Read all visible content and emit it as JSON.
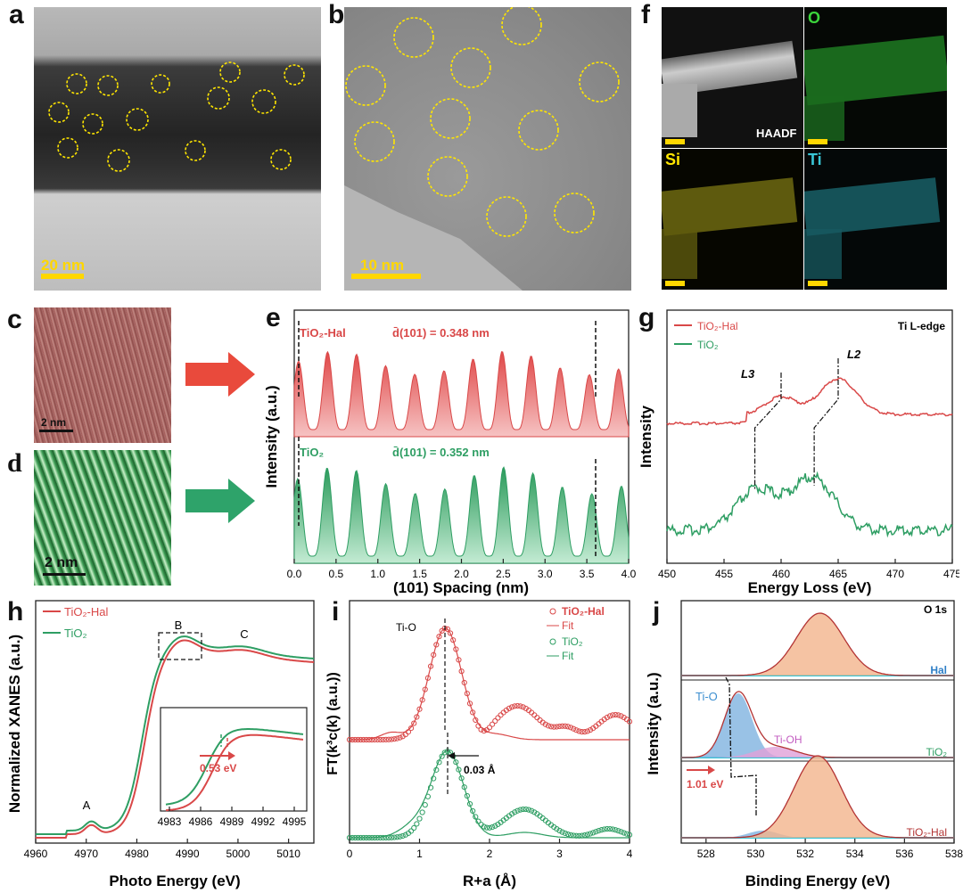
{
  "panels": {
    "a": {
      "label": "a",
      "scalebar": "20 nm"
    },
    "b": {
      "label": "b",
      "scalebar": "10 nm"
    },
    "c": {
      "label": "c",
      "scalebar": "2 nm"
    },
    "d": {
      "label": "d",
      "scalebar": "2 nm"
    },
    "e": {
      "label": "e"
    },
    "f": {
      "label": "f",
      "maps": [
        "HAADF",
        "O",
        "Si",
        "Ti"
      ]
    },
    "g": {
      "label": "g"
    },
    "h": {
      "label": "h"
    },
    "i": {
      "label": "i"
    },
    "j": {
      "label": "j"
    }
  },
  "colors": {
    "red": "#d94848",
    "green": "#2e9e63",
    "dark_red": "#b33333",
    "blue_fill": "#7fb3e0",
    "orange_fill": "#f2b48c",
    "pink_fill": "#e0a0d8",
    "cyan": "#39c6d6"
  },
  "chart_data": [
    {
      "id": "e",
      "type": "area",
      "xlabel": "(101) Spacing (nm)",
      "ylabel": "Intensity (a.u.)",
      "xlim": [
        0.0,
        4.0
      ],
      "xticks": [
        "0.0",
        "0.5",
        "1.0",
        "1.5",
        "2.0",
        "2.5",
        "3.0",
        "3.5",
        "4.0"
      ],
      "series": [
        {
          "name": "TiO2-Hal",
          "annotation": "d(101) = 0.348 nm",
          "period_nm": 0.348,
          "peaks": 11
        },
        {
          "name": "TiO2",
          "annotation": "d(101) = 0.352 nm",
          "period_nm": 0.352,
          "peaks": 11
        }
      ],
      "series_labels": [
        "TiO₂-Hal",
        "TiO₂"
      ],
      "annotations": [
        "d̄(101) = 0.348 nm",
        "d̄(101) = 0.352 nm"
      ]
    },
    {
      "id": "g",
      "type": "line",
      "title": "Ti L-edge",
      "xlabel": "Energy Loss (eV)",
      "ylabel": "Intensity",
      "xlim": [
        450,
        475
      ],
      "xticks": [
        "450",
        "455",
        "460",
        "465",
        "470",
        "475"
      ],
      "series": [
        {
          "name": "TiO₂-Hal",
          "peaks": {
            "L3": 460.0,
            "L2": 465.0
          }
        },
        {
          "name": "TiO₂",
          "peaks": {
            "L3": 457.7,
            "L2": 462.9
          }
        }
      ],
      "peak_labels": [
        "L3",
        "L2"
      ]
    },
    {
      "id": "h",
      "type": "line",
      "xlabel": "Photo Energy (eV)",
      "ylabel": "Normalized XANES (a.u.)",
      "xlim": [
        4960,
        5015
      ],
      "xticks": [
        "4960",
        "4970",
        "4980",
        "4990",
        "5000",
        "5010"
      ],
      "series": [
        {
          "name": "TiO₂-Hal"
        },
        {
          "name": "TiO₂"
        }
      ],
      "features": [
        "A",
        "B",
        "C"
      ],
      "inset": {
        "xticks": [
          "4983",
          "4986",
          "4989",
          "4992",
          "4995"
        ],
        "shift": "0.53 eV"
      }
    },
    {
      "id": "i",
      "type": "line",
      "xlabel": "R+a (Å)",
      "ylabel": "FT(k³c(k) (a.u.))",
      "xlim": [
        0,
        4
      ],
      "xticks": [
        "0",
        "1",
        "2",
        "3",
        "4"
      ],
      "series": [
        {
          "name": "TiO₂-Hal",
          "peak": 1.37
        },
        {
          "name": "Fit"
        },
        {
          "name": "TiO₂",
          "peak": 1.4
        },
        {
          "name": "Fit"
        }
      ],
      "annotations": [
        "Ti-O",
        "0.03 Å"
      ]
    },
    {
      "id": "j",
      "type": "area",
      "title": "O 1s",
      "xlabel": "Binding Energy (eV)",
      "ylabel": "Intensity (a.u.)",
      "xlim": [
        527,
        538
      ],
      "xticks": [
        "528",
        "530",
        "532",
        "534",
        "536",
        "538"
      ],
      "series": [
        {
          "name": "Hal",
          "peak": 532.6
        },
        {
          "name": "TiO₂",
          "peaks": {
            "Ti-O": 529.3,
            "Ti-OH": 530.8
          }
        },
        {
          "name": "TiO₂-Hal",
          "peak": 532.5
        }
      ],
      "annotations": [
        "Ti-O",
        "Ti-OH",
        "1.01 eV"
      ]
    }
  ]
}
